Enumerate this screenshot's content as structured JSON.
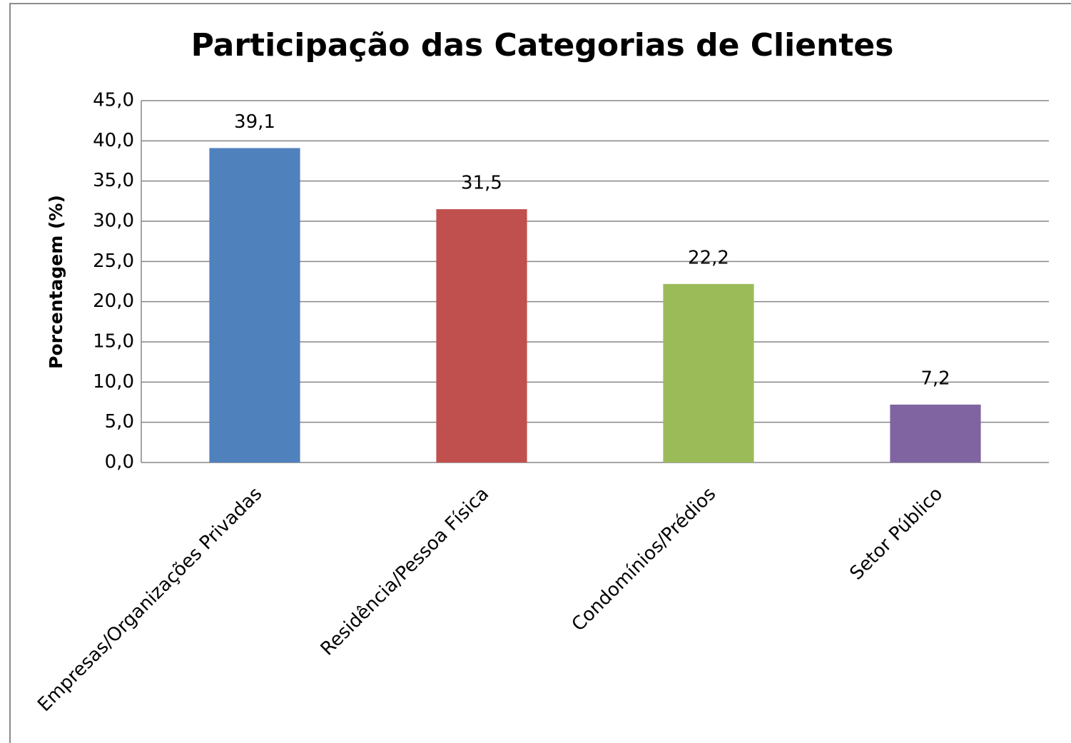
{
  "chart_data": {
    "type": "bar",
    "title": "Participação das Categorias de Clientes",
    "y_label": "Porcentagem (%)",
    "categories": [
      "Empresas/Organizações Privadas",
      "Residência/Pessoa Física",
      "Condomínios/Prédios",
      "Setor Público"
    ],
    "values": [
      39.1,
      31.5,
      22.2,
      7.2
    ],
    "value_labels": [
      "39,1",
      "31,5",
      "22,2",
      "7,2"
    ],
    "colors": [
      "#4f81bd",
      "#c0504d",
      "#9bbb59",
      "#8064a2"
    ],
    "ylim": [
      0,
      45
    ],
    "yticks": [
      {
        "value": 0,
        "label": "0,0"
      },
      {
        "value": 5,
        "label": "5,0"
      },
      {
        "value": 10,
        "label": "10,0"
      },
      {
        "value": 15,
        "label": "15,0"
      },
      {
        "value": 20,
        "label": "20,0"
      },
      {
        "value": 25,
        "label": "25,0"
      },
      {
        "value": 30,
        "label": "30,0"
      },
      {
        "value": 35,
        "label": "35,0"
      },
      {
        "value": 40,
        "label": "40,0"
      },
      {
        "value": 45,
        "label": "45,0"
      }
    ],
    "grid": true
  }
}
